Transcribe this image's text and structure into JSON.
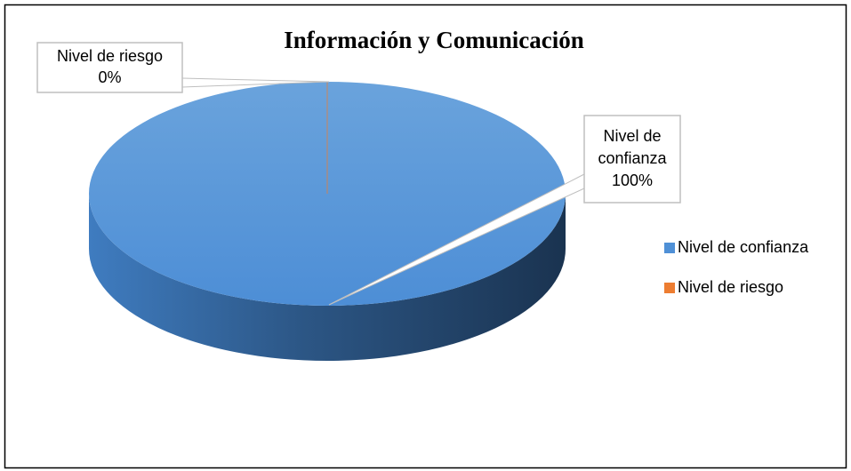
{
  "chart_data": {
    "type": "pie",
    "title": "Información y Comunicación",
    "categories": [
      "Nivel de confianza",
      "Nivel de riesgo"
    ],
    "values": [
      100,
      0
    ],
    "value_labels": [
      "100%",
      "0%"
    ],
    "colors": [
      "#4f90d6",
      "#ed7d31"
    ],
    "legend": "right"
  }
}
